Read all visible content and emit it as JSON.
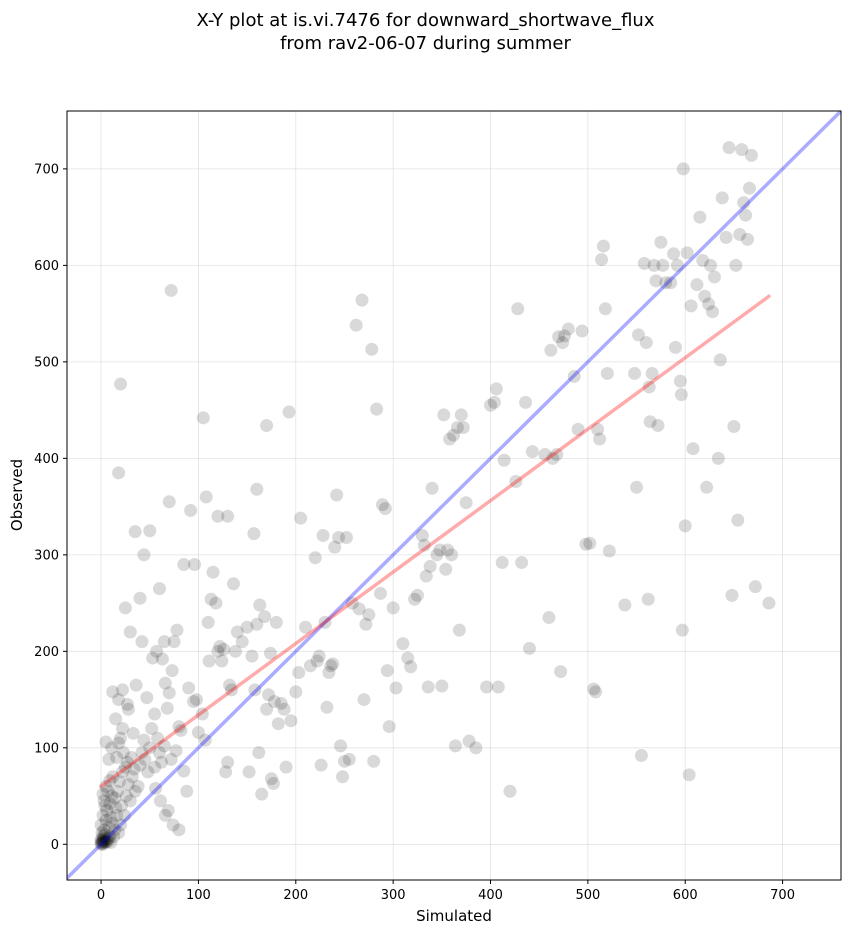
{
  "chart_data": {
    "type": "scatter",
    "title_line1": "X-Y plot at is.vi.7476 for downward_shortwave_flux",
    "title_line2": "from rav2-06-07 during summer",
    "xlabel": "Simulated",
    "ylabel": "Observed",
    "xlim": [
      -35,
      760
    ],
    "ylim": [
      -37,
      760
    ],
    "xticks": [
      0,
      100,
      200,
      300,
      400,
      500,
      600,
      700
    ],
    "yticks": [
      0,
      100,
      200,
      300,
      400,
      500,
      600,
      700
    ],
    "grid": true,
    "colors": {
      "points": "#000000",
      "one_to_one": "#0000ff",
      "fit": "#ff0000",
      "grid": "#b0b0b0"
    },
    "one_to_one_line": {
      "x": [
        -35,
        760
      ],
      "y": [
        -35,
        760
      ]
    },
    "fit_line": {
      "x": [
        0,
        686
      ],
      "y": [
        60,
        568
      ]
    },
    "points": [
      [
        0,
        2
      ],
      [
        1,
        1
      ],
      [
        2,
        3
      ],
      [
        0,
        0
      ],
      [
        3,
        2
      ],
      [
        1,
        4
      ],
      [
        2,
        0
      ],
      [
        4,
        3
      ],
      [
        0,
        5
      ],
      [
        3,
        6
      ],
      [
        5,
        2
      ],
      [
        2,
        8
      ],
      [
        6,
        5
      ],
      [
        4,
        10
      ],
      [
        8,
        6
      ],
      [
        1,
        12
      ],
      [
        7,
        3
      ],
      [
        9,
        9
      ],
      [
        3,
        15
      ],
      [
        10,
        2
      ],
      [
        0,
        20
      ],
      [
        5,
        25
      ],
      [
        2,
        30
      ],
      [
        8,
        18
      ],
      [
        12,
        22
      ],
      [
        6,
        35
      ],
      [
        4,
        40
      ],
      [
        10,
        28
      ],
      [
        14,
        15
      ],
      [
        3,
        45
      ],
      [
        9,
        42
      ],
      [
        11,
        50
      ],
      [
        7,
        55
      ],
      [
        15,
        38
      ],
      [
        13,
        8
      ],
      [
        16,
        30
      ],
      [
        5,
        60
      ],
      [
        18,
        12
      ],
      [
        20,
        20
      ],
      [
        2,
        52
      ],
      [
        14,
        48
      ],
      [
        9,
        66
      ],
      [
        17,
        55
      ],
      [
        21,
        40
      ],
      [
        24,
        30
      ],
      [
        12,
        70
      ],
      [
        19,
        65
      ],
      [
        22,
        75
      ],
      [
        26,
        50
      ],
      [
        8,
        88
      ],
      [
        16,
        90
      ],
      [
        25,
        80
      ],
      [
        28,
        62
      ],
      [
        30,
        45
      ],
      [
        11,
        100
      ],
      [
        18,
        105
      ],
      [
        23,
        95
      ],
      [
        27,
        85
      ],
      [
        32,
        70
      ],
      [
        35,
        55
      ],
      [
        5,
        106
      ],
      [
        40,
        82
      ],
      [
        20,
        110
      ],
      [
        31,
        90
      ],
      [
        34,
        78
      ],
      [
        38,
        60
      ],
      [
        42,
        95
      ],
      [
        45,
        88
      ],
      [
        15,
        130
      ],
      [
        22,
        120
      ],
      [
        33,
        115
      ],
      [
        28,
        140
      ],
      [
        44,
        108
      ],
      [
        48,
        75
      ],
      [
        50,
        100
      ],
      [
        36,
        165
      ],
      [
        27,
        145
      ],
      [
        18,
        150
      ],
      [
        12,
        158
      ],
      [
        22,
        160
      ],
      [
        55,
        80
      ],
      [
        60,
        95
      ],
      [
        52,
        120
      ],
      [
        58,
        110
      ],
      [
        62,
        85
      ],
      [
        65,
        102
      ],
      [
        47,
        152
      ],
      [
        53,
        193
      ],
      [
        57,
        200
      ],
      [
        63,
        192
      ],
      [
        66,
        167
      ],
      [
        70,
        157
      ],
      [
        68,
        141
      ],
      [
        73,
        180
      ],
      [
        75,
        210
      ],
      [
        78,
        222
      ],
      [
        80,
        122
      ],
      [
        82,
        118
      ],
      [
        77,
        97
      ],
      [
        72,
        88
      ],
      [
        56,
        58
      ],
      [
        61,
        45
      ],
      [
        66,
        30
      ],
      [
        69,
        35
      ],
      [
        74,
        20
      ],
      [
        80,
        15
      ],
      [
        85,
        76
      ],
      [
        88,
        55
      ],
      [
        90,
        162
      ],
      [
        95,
        148
      ],
      [
        98,
        150
      ],
      [
        92,
        346
      ],
      [
        100,
        116
      ],
      [
        104,
        135
      ],
      [
        107,
        108
      ],
      [
        110,
        230
      ],
      [
        111,
        190
      ],
      [
        113,
        254
      ],
      [
        115,
        282
      ],
      [
        118,
        250
      ],
      [
        120,
        200
      ],
      [
        122,
        205
      ],
      [
        124,
        190
      ],
      [
        126,
        202
      ],
      [
        128,
        75
      ],
      [
        130,
        85
      ],
      [
        132,
        165
      ],
      [
        134,
        160
      ],
      [
        136,
        270
      ],
      [
        138,
        200
      ],
      [
        140,
        220
      ],
      [
        145,
        210
      ],
      [
        150,
        225
      ],
      [
        152,
        75
      ],
      [
        155,
        195
      ],
      [
        158,
        160
      ],
      [
        160,
        228
      ],
      [
        162,
        95
      ],
      [
        163,
        248
      ],
      [
        165,
        52
      ],
      [
        168,
        236
      ],
      [
        170,
        140
      ],
      [
        172,
        155
      ],
      [
        174,
        198
      ],
      [
        175,
        68
      ],
      [
        177,
        63
      ],
      [
        178,
        148
      ],
      [
        180,
        230
      ],
      [
        182,
        125
      ],
      [
        185,
        146
      ],
      [
        188,
        140
      ],
      [
        190,
        80
      ],
      [
        193,
        448
      ],
      [
        195,
        128
      ],
      [
        200,
        158
      ],
      [
        203,
        178
      ],
      [
        205,
        338
      ],
      [
        210,
        225
      ],
      [
        215,
        185
      ],
      [
        220,
        297
      ],
      [
        222,
        190
      ],
      [
        224,
        195
      ],
      [
        226,
        82
      ],
      [
        228,
        320
      ],
      [
        230,
        230
      ],
      [
        232,
        142
      ],
      [
        234,
        178
      ],
      [
        236,
        185
      ],
      [
        238,
        187
      ],
      [
        240,
        308
      ],
      [
        242,
        362
      ],
      [
        244,
        318
      ],
      [
        246,
        102
      ],
      [
        248,
        70
      ],
      [
        250,
        86
      ],
      [
        252,
        318
      ],
      [
        255,
        88
      ],
      [
        258,
        250
      ],
      [
        262,
        538
      ],
      [
        265,
        244
      ],
      [
        268,
        564
      ],
      [
        270,
        150
      ],
      [
        272,
        228
      ],
      [
        275,
        238
      ],
      [
        278,
        513
      ],
      [
        280,
        86
      ],
      [
        283,
        451
      ],
      [
        287,
        260
      ],
      [
        289,
        352
      ],
      [
        292,
        348
      ],
      [
        294,
        180
      ],
      [
        296,
        122
      ],
      [
        300,
        245
      ],
      [
        303,
        162
      ],
      [
        310,
        208
      ],
      [
        315,
        193
      ],
      [
        318,
        184
      ],
      [
        322,
        254
      ],
      [
        325,
        258
      ],
      [
        330,
        320
      ],
      [
        332,
        310
      ],
      [
        334,
        278
      ],
      [
        336,
        163
      ],
      [
        338,
        288
      ],
      [
        340,
        369
      ],
      [
        345,
        300
      ],
      [
        348,
        305
      ],
      [
        350,
        164
      ],
      [
        352,
        445
      ],
      [
        354,
        285
      ],
      [
        356,
        305
      ],
      [
        358,
        420
      ],
      [
        360,
        300
      ],
      [
        362,
        424
      ],
      [
        364,
        102
      ],
      [
        366,
        432
      ],
      [
        368,
        222
      ],
      [
        370,
        445
      ],
      [
        372,
        432
      ],
      [
        375,
        354
      ],
      [
        378,
        107
      ],
      [
        385,
        100
      ],
      [
        396,
        163
      ],
      [
        400,
        455
      ],
      [
        404,
        458
      ],
      [
        406,
        472
      ],
      [
        408,
        163
      ],
      [
        412,
        292
      ],
      [
        414,
        398
      ],
      [
        420,
        55
      ],
      [
        426,
        376
      ],
      [
        428,
        555
      ],
      [
        432,
        292
      ],
      [
        436,
        458
      ],
      [
        440,
        203
      ],
      [
        443,
        407
      ],
      [
        456,
        404
      ],
      [
        460,
        235
      ],
      [
        462,
        512
      ],
      [
        464,
        400
      ],
      [
        468,
        404
      ],
      [
        470,
        526
      ],
      [
        472,
        179
      ],
      [
        474,
        520
      ],
      [
        476,
        527
      ],
      [
        480,
        534
      ],
      [
        486,
        485
      ],
      [
        490,
        430
      ],
      [
        494,
        532
      ],
      [
        498,
        311
      ],
      [
        502,
        312
      ],
      [
        506,
        161
      ],
      [
        508,
        158
      ],
      [
        510,
        430
      ],
      [
        512,
        420
      ],
      [
        514,
        606
      ],
      [
        516,
        620
      ],
      [
        518,
        555
      ],
      [
        520,
        488
      ],
      [
        522,
        304
      ],
      [
        538,
        248
      ],
      [
        548,
        488
      ],
      [
        550,
        370
      ],
      [
        552,
        528
      ],
      [
        555,
        92
      ],
      [
        558,
        602
      ],
      [
        560,
        520
      ],
      [
        562,
        254
      ],
      [
        563,
        474
      ],
      [
        564,
        438
      ],
      [
        566,
        488
      ],
      [
        568,
        600
      ],
      [
        570,
        584
      ],
      [
        572,
        434
      ],
      [
        575,
        624
      ],
      [
        577,
        600
      ],
      [
        580,
        582
      ],
      [
        585,
        582
      ],
      [
        588,
        612
      ],
      [
        590,
        515
      ],
      [
        592,
        600
      ],
      [
        595,
        480
      ],
      [
        596,
        466
      ],
      [
        597,
        222
      ],
      [
        598,
        700
      ],
      [
        600,
        330
      ],
      [
        602,
        613
      ],
      [
        604,
        72
      ],
      [
        606,
        558
      ],
      [
        608,
        410
      ],
      [
        612,
        580
      ],
      [
        615,
        650
      ],
      [
        618,
        605
      ],
      [
        620,
        568
      ],
      [
        622,
        370
      ],
      [
        624,
        560
      ],
      [
        626,
        600
      ],
      [
        628,
        552
      ],
      [
        630,
        588
      ],
      [
        634,
        400
      ],
      [
        636,
        502
      ],
      [
        638,
        670
      ],
      [
        642,
        629
      ],
      [
        645,
        722
      ],
      [
        648,
        258
      ],
      [
        650,
        433
      ],
      [
        652,
        600
      ],
      [
        654,
        336
      ],
      [
        656,
        632
      ],
      [
        658,
        720
      ],
      [
        660,
        665
      ],
      [
        662,
        652
      ],
      [
        664,
        627
      ],
      [
        666,
        680
      ],
      [
        668,
        714
      ],
      [
        672,
        267
      ],
      [
        686,
        250
      ],
      [
        50,
        325
      ],
      [
        35,
        324
      ],
      [
        40,
        255
      ],
      [
        60,
        265
      ],
      [
        25,
        245
      ],
      [
        70,
        355
      ],
      [
        105,
        442
      ],
      [
        108,
        360
      ],
      [
        72,
        574
      ],
      [
        20,
        477
      ],
      [
        18,
        385
      ],
      [
        30,
        220
      ],
      [
        42,
        210
      ],
      [
        85,
        290
      ],
      [
        96,
        290
      ],
      [
        120,
        340
      ],
      [
        130,
        340
      ],
      [
        157,
        322
      ],
      [
        160,
        368
      ],
      [
        170,
        434
      ],
      [
        44,
        300
      ],
      [
        65,
        210
      ],
      [
        55,
        135
      ]
    ]
  }
}
